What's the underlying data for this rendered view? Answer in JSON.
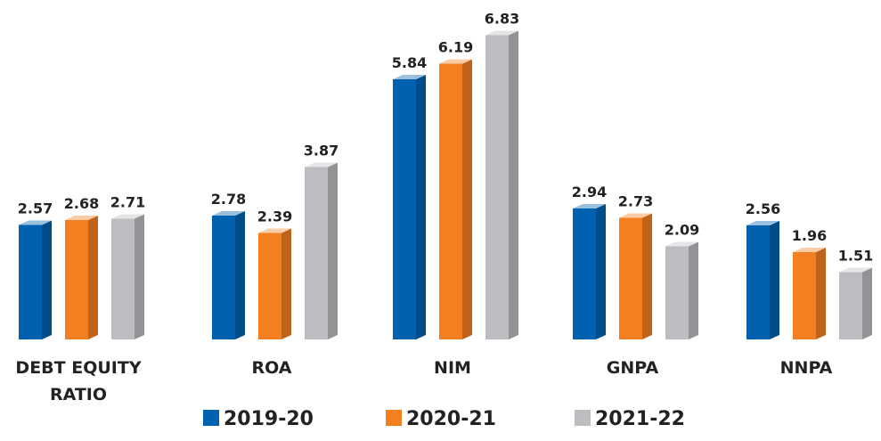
{
  "chart_data": {
    "type": "bar3d",
    "categories": [
      "DEBT EQUITY RATIO",
      "ROA",
      "NIM",
      "GNPA",
      "NNPA"
    ],
    "series": [
      {
        "name": "2019-20",
        "color": "#0061b0",
        "values": [
          2.57,
          2.78,
          5.84,
          2.94,
          2.56
        ]
      },
      {
        "name": "2020-21",
        "color": "#f47f20",
        "values": [
          2.68,
          2.39,
          6.19,
          2.73,
          1.96
        ]
      },
      {
        "name": "2021-22",
        "color": "#bcbdc0",
        "values": [
          2.71,
          3.87,
          6.83,
          2.09,
          1.51
        ]
      }
    ],
    "ylim": [
      0,
      7.5
    ],
    "legend": "bottom"
  }
}
